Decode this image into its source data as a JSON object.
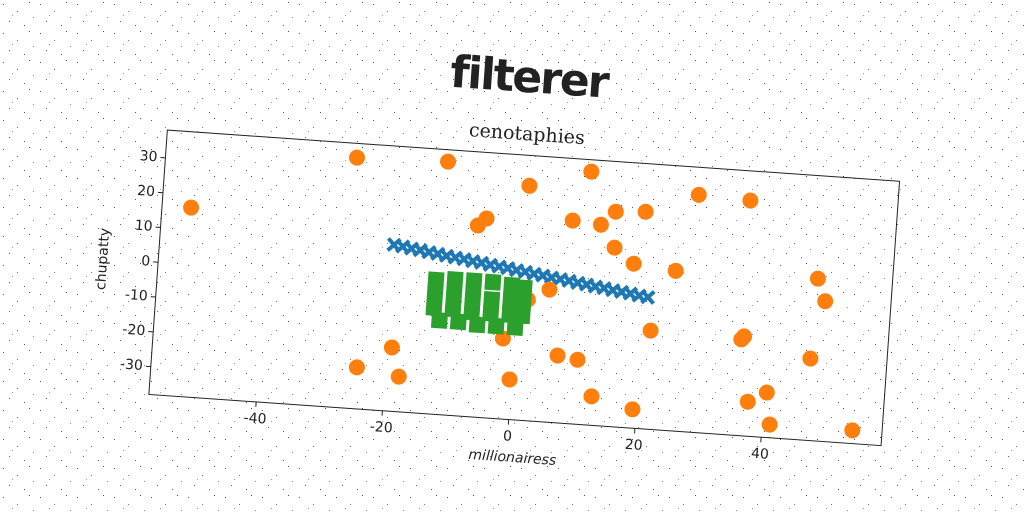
{
  "chart_data": {
    "type": "scatter",
    "title": "filterer",
    "subtitle": "cenotaphies",
    "x_label": "millionairess",
    "y_label": "chupatty",
    "xlim": [
      -57,
      59
    ],
    "ylim": [
      -38,
      38
    ],
    "xticks": [
      -40,
      -20,
      0,
      20,
      40
    ],
    "yticks": [
      -30,
      -20,
      -10,
      0,
      10,
      20,
      30
    ],
    "series": [
      {
        "color": "#1f77b4",
        "marker": "x",
        "x": [
          -20,
          -18.6,
          -17.2,
          -15.8,
          -14.4,
          -13,
          -11.6,
          -10.2,
          -8.8,
          -7.4,
          -6,
          -4.6,
          -3.2,
          -1.8,
          -0.4,
          1,
          2.4,
          3.8,
          5.2,
          6.6,
          8,
          9.4,
          10.8,
          12.2,
          13.6,
          15,
          16.4,
          17.8,
          19.2,
          20.6
        ],
        "values": [
          9.7,
          9.4,
          9.0,
          8.7,
          8.3,
          8.0,
          7.6,
          7.3,
          7.0,
          6.6,
          6.3,
          5.9,
          5.6,
          5.3,
          4.9,
          4.6,
          4.2,
          3.9,
          3.5,
          3.2,
          2.9,
          2.5,
          2.2,
          1.8,
          1.5,
          1.1,
          0.8,
          0.5,
          0.1,
          -0.2
        ]
      },
      {
        "color": "#ff7f0e",
        "marker": "o",
        "x": [
          -52.4,
          -26.8,
          -12.4,
          0.7,
          10.3,
          -5.7,
          -7.0,
          7.9,
          12.4,
          14.6,
          19.3,
          27.5,
          35.7,
          14.8,
          18.0,
          24.7,
          47.2,
          48.6,
          5.0,
          1.7,
          21.4,
          35.8,
          36.2,
          46.9,
          7.0,
          10.2,
          -1.8,
          -19.2,
          -24.5,
          -17.8,
          -0.3,
          12.8,
          19.4,
          37.5,
          40.4,
          41.2,
          54.3
        ],
        "values": [
          16.3,
          33.9,
          34.6,
          29.3,
          34.6,
          19.1,
          16.9,
          20.2,
          19.6,
          23.6,
          24.2,
          30.1,
          29.5,
          13.3,
          9.1,
          7.9,
          8.5,
          2.2,
          0.0,
          -3.3,
          -9.7,
          -10.4,
          -9.5,
          -14.5,
          -18.7,
          -19.5,
          -14.9,
          -19.7,
          -26.1,
          -27.9,
          -26.5,
          -29.7,
          -32.6,
          -28.1,
          -25.1,
          -34.2,
          -34.2
        ]
      },
      {
        "color": "#2ca02c",
        "marker": "s",
        "x": [
          -13,
          -10,
          -7,
          -4,
          -1,
          1,
          -13,
          -10,
          -7,
          -4,
          -1,
          1,
          -13,
          -10,
          -7,
          -4,
          -1,
          1,
          -12,
          -9,
          -6,
          -3,
          0
        ],
        "values": [
          0.5,
          1,
          1,
          1,
          0.5,
          0,
          -3.5,
          -3.5,
          -3.5,
          -4,
          -4,
          -4,
          -7.5,
          -7.5,
          -8,
          -8,
          -8,
          -8,
          -11,
          -11,
          -11.5,
          -11.5,
          -11.5
        ]
      }
    ]
  }
}
